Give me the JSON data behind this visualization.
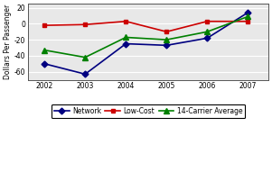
{
  "years": [
    2002,
    2003,
    2004,
    2005,
    2006,
    2007
  ],
  "network": [
    -50,
    -63,
    -25,
    -27,
    -18,
    14
  ],
  "low_cost": [
    -2,
    -1,
    3,
    -10,
    3,
    3
  ],
  "carrier_avg": [
    -33,
    -42,
    -17,
    -20,
    -10,
    9
  ],
  "colors": {
    "network": "#000080",
    "low_cost": "#CC0000",
    "carrier_avg": "#008000"
  },
  "ylabel": "Dollars Per Passenger",
  "ylim": [
    -70,
    25
  ],
  "yticks": [
    -60,
    -40,
    -20,
    0,
    20
  ],
  "legend_labels": [
    "Network",
    "Low-Cost",
    "14-Carrier Average"
  ],
  "bg_color": "#FFFFFF",
  "plot_bg": "#E8E8E8",
  "grid_color": "#FFFFFF"
}
